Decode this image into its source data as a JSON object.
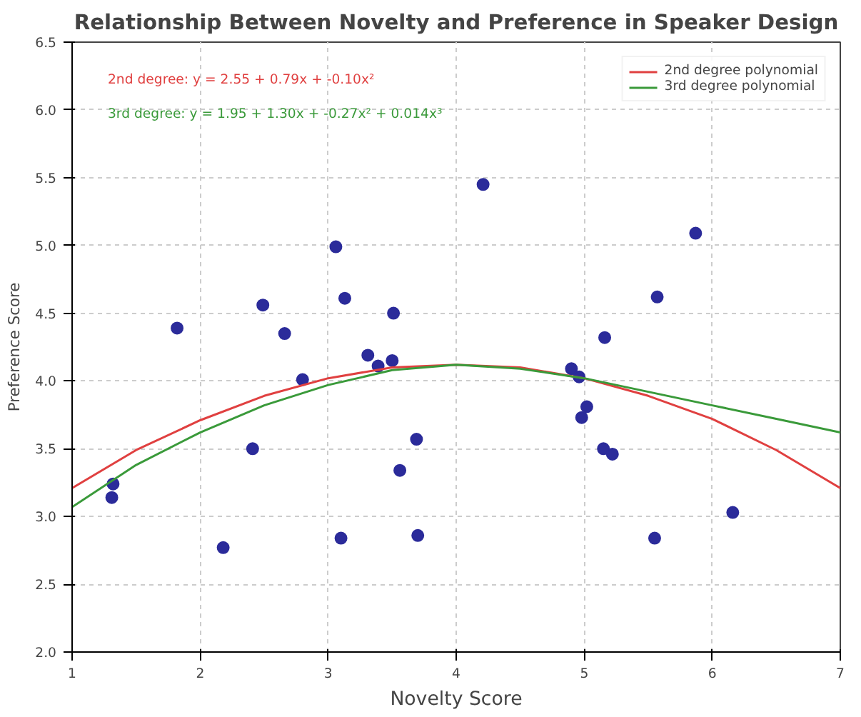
{
  "chart_data": {
    "type": "scatter",
    "title": "Relationship Between Novelty and Preference in Speaker Design",
    "xlabel": "Novelty Score",
    "ylabel": "Preference Score",
    "xlim": [
      1,
      7
    ],
    "xticks": [
      1,
      2,
      3,
      4,
      5,
      6,
      7
    ],
    "ylim": [
      2.0,
      6.5
    ],
    "yticks": [
      {
        "value": 2.0,
        "label": "2.0"
      },
      {
        "value": 2.5,
        "label": "2.5"
      },
      {
        "value": 3.0,
        "label": "3.0"
      },
      {
        "value": 3.5,
        "label": "3.5"
      },
      {
        "value": 4.0,
        "label": "4.0"
      },
      {
        "value": 4.5,
        "label": "4.5"
      },
      {
        "value": 5.0,
        "label": "5.0"
      },
      {
        "value": 5.5,
        "label": "5.5"
      },
      {
        "value": 6.0,
        "label": "6.0"
      },
      {
        "value": 6.5,
        "label": "6.5"
      }
    ],
    "grid": true,
    "legend": "top right",
    "marker": "circle",
    "series": [
      {
        "color": "#2b2b9a",
        "x": [
          1.82,
          2.49,
          2.66,
          3.06,
          3.13,
          3.51,
          3.31,
          3.39,
          3.5,
          2.8,
          4.21,
          5.87,
          5.57,
          5.16,
          4.9,
          4.96,
          5.02,
          4.98,
          5.15,
          5.22,
          5.55,
          6.16,
          3.69,
          3.56,
          2.41,
          3.7,
          3.1,
          2.18,
          1.32,
          1.31
        ],
        "values": [
          4.39,
          4.56,
          4.35,
          4.99,
          4.61,
          4.5,
          4.19,
          4.11,
          4.15,
          4.01,
          5.45,
          5.09,
          4.62,
          4.32,
          4.09,
          4.03,
          3.81,
          3.73,
          3.5,
          3.46,
          2.84,
          3.03,
          3.57,
          3.34,
          3.5,
          2.86,
          2.84,
          2.77,
          3.24,
          3.14
        ]
      },
      {
        "type": "line",
        "name": "2nd degree polynomial",
        "marker": "none",
        "color": "#e04040",
        "x": [
          1,
          1.5,
          2,
          2.5,
          3,
          3.5,
          4,
          4.5,
          5,
          5.5,
          6,
          6.5,
          7
        ],
        "values": [
          3.21,
          3.49,
          3.71,
          3.89,
          4.02,
          4.1,
          4.12,
          4.1,
          4.02,
          3.89,
          3.72,
          3.49,
          3.21
        ]
      },
      {
        "type": "line",
        "name": "3rd degree polynomial",
        "marker": "none",
        "color": "#3a9a3a",
        "x": [
          1,
          1.5,
          2,
          2.5,
          3,
          3.5,
          4,
          4.5,
          5,
          5.5,
          6,
          6.5,
          7
        ],
        "values": [
          3.07,
          3.38,
          3.62,
          3.82,
          3.97,
          4.08,
          4.12,
          4.09,
          4.02,
          3.92,
          3.82,
          3.72,
          3.62
        ]
      }
    ],
    "annotations": [
      "2nd degree: y = 2.55 + 0.79x + -0.10x²",
      "3rd degree: y = 1.95 + 1.30x + -0.27x² + 0.014x³"
    ]
  }
}
